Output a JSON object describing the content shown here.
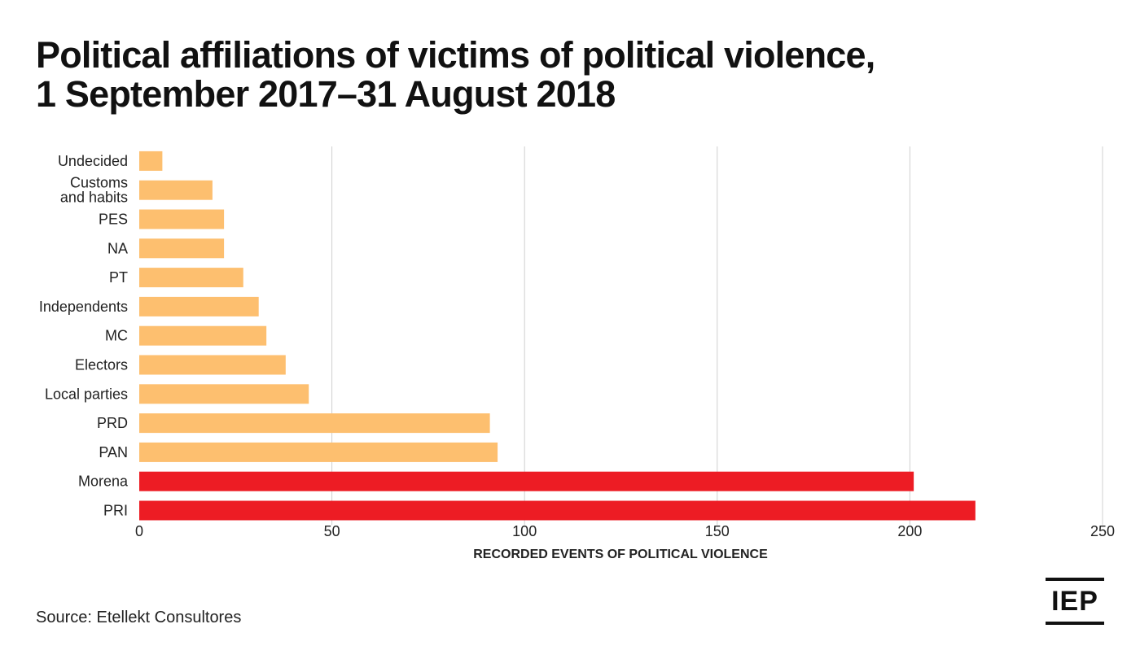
{
  "title_line1": "Political affiliations of victims of political violence,",
  "title_line2": "1 September 2017–31 August 2018",
  "source": "Source: Etellekt Consultores",
  "logo_text": "IEP",
  "chart_data": {
    "type": "bar",
    "orientation": "horizontal",
    "title": "Political affiliations of victims of political violence, 1 September 2017–31 August 2018",
    "xlabel": "RECORDED EVENTS OF POLITICAL VIOLENCE",
    "ylabel": "",
    "xlim": [
      0,
      250
    ],
    "xticks": [
      0,
      50,
      100,
      150,
      200,
      250
    ],
    "grid": "vertical",
    "legend": "none",
    "categories": [
      [
        "Undecided"
      ],
      [
        "Customs",
        "and habits"
      ],
      [
        "PES"
      ],
      [
        "NA"
      ],
      [
        "PT"
      ],
      [
        "Independents"
      ],
      [
        "MC"
      ],
      [
        "Electors"
      ],
      [
        "Local parties"
      ],
      [
        "PRD"
      ],
      [
        "PAN"
      ],
      [
        "Morena"
      ],
      [
        "PRI"
      ]
    ],
    "values": [
      6,
      19,
      22,
      22,
      27,
      31,
      33,
      38,
      44,
      91,
      93,
      201,
      217
    ],
    "colors": [
      "#FDBF6F",
      "#FDBF6F",
      "#FDBF6F",
      "#FDBF6F",
      "#FDBF6F",
      "#FDBF6F",
      "#FDBF6F",
      "#FDBF6F",
      "#FDBF6F",
      "#FDBF6F",
      "#FDBF6F",
      "#ED1C24",
      "#ED1C24"
    ],
    "grid_color": "#D0D0D0"
  }
}
